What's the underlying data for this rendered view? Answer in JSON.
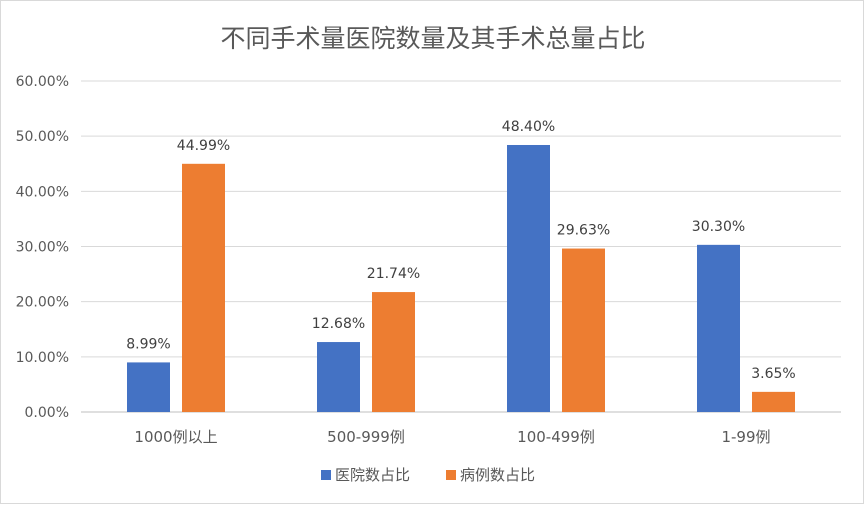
{
  "chart_data": {
    "type": "bar",
    "title": "不同手术量医院数量及其手术总量占比",
    "categories": [
      "1000例以上",
      "500-999例",
      "100-499例",
      "1-99例"
    ],
    "series": [
      {
        "name": "医院数占比",
        "color": "#4472C4",
        "values": [
          8.99,
          12.68,
          48.4,
          30.3
        ],
        "labels": [
          "8.99%",
          "12.68%",
          "48.40%",
          "30.30%"
        ]
      },
      {
        "name": "病例数占比",
        "color": "#ED7D31",
        "values": [
          44.99,
          21.74,
          29.63,
          3.65
        ],
        "labels": [
          "44.99%",
          "21.74%",
          "29.63%",
          "3.65%"
        ]
      }
    ],
    "yticks": [
      "0.00%",
      "10.00%",
      "20.00%",
      "30.00%",
      "40.00%",
      "50.00%",
      "60.00%"
    ],
    "ylim": [
      0,
      60
    ],
    "grid": true,
    "legend": "bottom"
  }
}
